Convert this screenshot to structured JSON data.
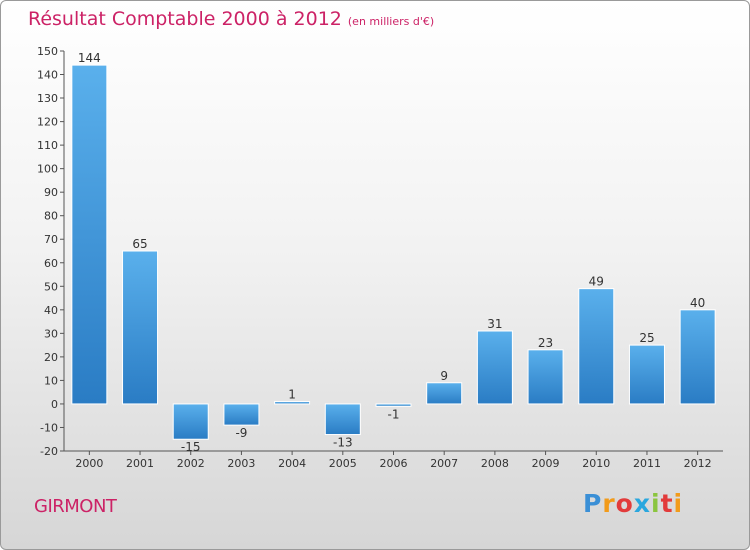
{
  "title": "Résultat Comptable 2000 à 2012",
  "unit_note": "(en milliers d'€)",
  "commune": "GIRMONT",
  "brand": {
    "letters": [
      "P",
      "r",
      "o",
      "x",
      "i",
      "t",
      "i"
    ],
    "colors": [
      "#3a8fd6",
      "#f29b1a",
      "#e23b3b",
      "#2aa7de",
      "#8bc53f",
      "#e23b3b",
      "#f29b1a"
    ]
  },
  "colors": {
    "bar": "#3f97d9",
    "title": "#cc2266"
  },
  "chart_data": {
    "type": "bar",
    "categories": [
      "2000",
      "2001",
      "2002",
      "2003",
      "2004",
      "2005",
      "2006",
      "2007",
      "2008",
      "2009",
      "2010",
      "2011",
      "2012"
    ],
    "values": [
      144,
      65,
      -15,
      -9,
      1,
      -13,
      -1,
      9,
      31,
      23,
      49,
      25,
      40
    ],
    "data_labels": [
      "144",
      "65",
      "-15",
      "-9",
      "1",
      "-13",
      "-1",
      "9",
      "31",
      "23",
      "49",
      "25",
      "40"
    ],
    "ylim": [
      -20,
      150
    ],
    "yticks": [
      150,
      140,
      130,
      120,
      110,
      100,
      90,
      80,
      70,
      60,
      50,
      40,
      30,
      20,
      10,
      0,
      -10,
      -20
    ],
    "grid": false
  }
}
